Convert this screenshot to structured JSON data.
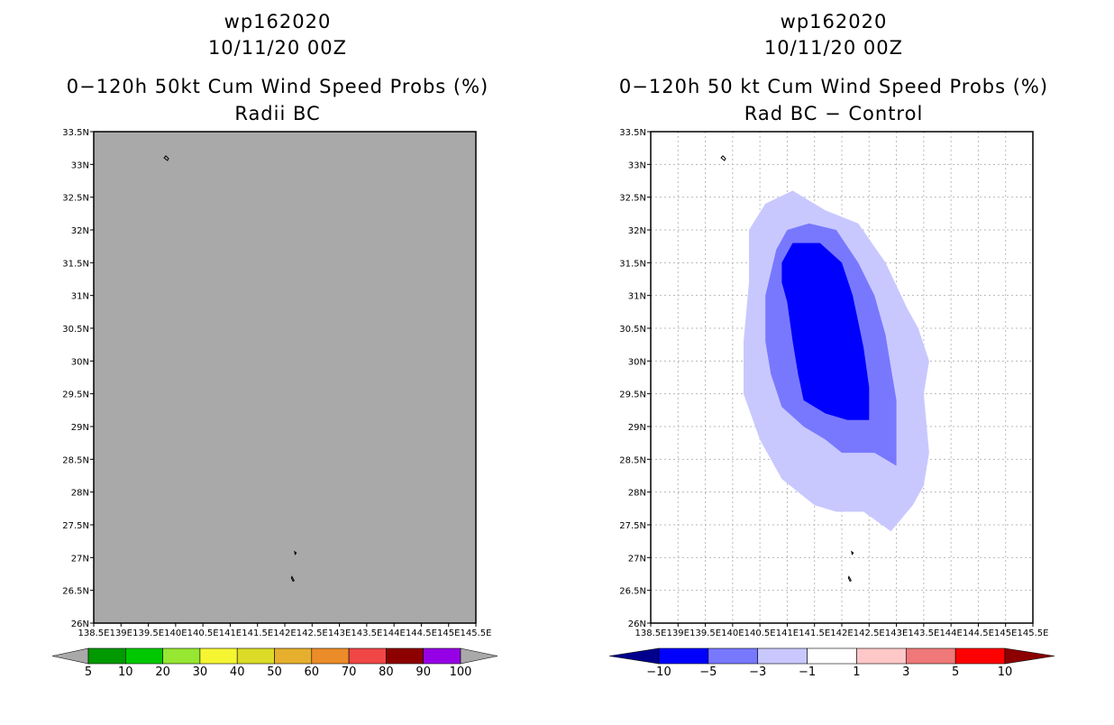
{
  "chart_data": [
    {
      "type": "heatmap",
      "id": "left",
      "title_lines": [
        "wp162020",
        "10/11/20 00Z",
        "0−120h 50kt Cum Wind Speed Probs (%)",
        "Radii BC"
      ],
      "xlim": [
        138.5,
        145.5
      ],
      "ylim": [
        26,
        33.5
      ],
      "x_ticks": [
        "138.5E",
        "139E",
        "139.5E",
        "140E",
        "140.5E",
        "141E",
        "141.5E",
        "142E",
        "142.5E",
        "143E",
        "143.5E",
        "144E",
        "144.5E",
        "145E",
        "145.5E"
      ],
      "y_ticks": [
        "26N",
        "26.5N",
        "27N",
        "27.5N",
        "28N",
        "28.5N",
        "29N",
        "29.5N",
        "30N",
        "30.5N",
        "31N",
        "31.5N",
        "32N",
        "32.5N",
        "33N",
        "33.5N"
      ],
      "grid": false,
      "field": "all values below 5% (uniform gray)",
      "background_color": "#a9a9a9",
      "contours": [],
      "colorbar": {
        "labels": [
          "5",
          "10",
          "20",
          "30",
          "40",
          "50",
          "60",
          "70",
          "80",
          "90",
          "100"
        ],
        "colors": [
          "#009900",
          "#00c800",
          "#96e632",
          "#f5f532",
          "#dcdc28",
          "#e6af2d",
          "#eb8c28",
          "#f04646",
          "#8c0000",
          "#9600e6"
        ],
        "under_color": "#a9a9a9",
        "over_color": "#a9a9a9"
      }
    },
    {
      "type": "heatmap",
      "id": "right",
      "title_lines": [
        "wp162020",
        "10/11/20 00Z",
        "0−120h 50 kt Cum Wind Speed Probs (%)",
        "Rad BC − Control"
      ],
      "xlim": [
        138.5,
        145.5
      ],
      "ylim": [
        26,
        33.5
      ],
      "x_ticks": [
        "138.5E",
        "139E",
        "139.5E",
        "140E",
        "140.5E",
        "141E",
        "141.5E",
        "142E",
        "142.5E",
        "143E",
        "143.5E",
        "144E",
        "144.5E",
        "145E",
        "145.5E"
      ],
      "y_ticks": [
        "26N",
        "26.5N",
        "27N",
        "27.5N",
        "28N",
        "28.5N",
        "29N",
        "29.5N",
        "30N",
        "30.5N",
        "31N",
        "31.5N",
        "32N",
        "32.5N",
        "33N",
        "33.5N"
      ],
      "grid": true,
      "background_color": "#ffffff",
      "contours": [
        {
          "level": "-3 to -1",
          "color": "#c8c8ff",
          "points": [
            [
              141.1,
              32.6
            ],
            [
              141.7,
              32.3
            ],
            [
              142.3,
              32.1
            ],
            [
              142.8,
              31.5
            ],
            [
              143.2,
              30.8
            ],
            [
              143.4,
              30.5
            ],
            [
              143.6,
              30.0
            ],
            [
              143.5,
              29.5
            ],
            [
              143.6,
              28.6
            ],
            [
              143.5,
              28.1
            ],
            [
              143.3,
              27.8
            ],
            [
              142.9,
              27.4
            ],
            [
              142.4,
              27.7
            ],
            [
              141.9,
              27.7
            ],
            [
              141.5,
              27.8
            ],
            [
              140.9,
              28.2
            ],
            [
              140.5,
              28.8
            ],
            [
              140.2,
              29.5
            ],
            [
              140.2,
              30.3
            ],
            [
              140.3,
              31.2
            ],
            [
              140.3,
              32.0
            ],
            [
              140.6,
              32.4
            ]
          ],
          "id": "c1"
        },
        {
          "level": "-5 to -3",
          "color": "#7878ff",
          "points": [
            [
              140.8,
              31.7
            ],
            [
              141.0,
              32.0
            ],
            [
              141.4,
              32.1
            ],
            [
              141.9,
              32.0
            ],
            [
              142.3,
              31.5
            ],
            [
              142.6,
              31.0
            ],
            [
              142.8,
              30.4
            ],
            [
              142.9,
              29.9
            ],
            [
              143.0,
              29.4
            ],
            [
              143.0,
              28.9
            ],
            [
              143.0,
              28.4
            ],
            [
              142.6,
              28.6
            ],
            [
              142.0,
              28.6
            ],
            [
              141.7,
              28.8
            ],
            [
              141.3,
              29.0
            ],
            [
              140.9,
              29.3
            ],
            [
              140.7,
              29.8
            ],
            [
              140.6,
              30.3
            ],
            [
              140.6,
              31.0
            ]
          ],
          "id": "c2"
        },
        {
          "level": "-10 to -5",
          "color": "#0000ff",
          "points": [
            [
              140.9,
              31.5
            ],
            [
              141.1,
              31.8
            ],
            [
              141.6,
              31.8
            ],
            [
              142.0,
              31.5
            ],
            [
              142.2,
              31.0
            ],
            [
              142.3,
              30.6
            ],
            [
              142.4,
              30.2
            ],
            [
              142.5,
              29.6
            ],
            [
              142.5,
              29.1
            ],
            [
              142.1,
              29.1
            ],
            [
              141.7,
              29.2
            ],
            [
              141.3,
              29.4
            ],
            [
              141.2,
              29.8
            ],
            [
              141.1,
              30.3
            ],
            [
              141.0,
              30.9
            ],
            [
              140.9,
              31.2
            ]
          ],
          "id": "c3"
        }
      ],
      "colorbar": {
        "labels": [
          "−10",
          "−5",
          "−3",
          "−1",
          "1",
          "3",
          "5",
          "10"
        ],
        "colors": [
          "#0000ff",
          "#7878ff",
          "#c8c8ff",
          "#ffffff",
          "#ffc8c8",
          "#f07878",
          "#ff0000"
        ],
        "under_color": "#00008c",
        "over_color": "#8c0000"
      }
    }
  ]
}
